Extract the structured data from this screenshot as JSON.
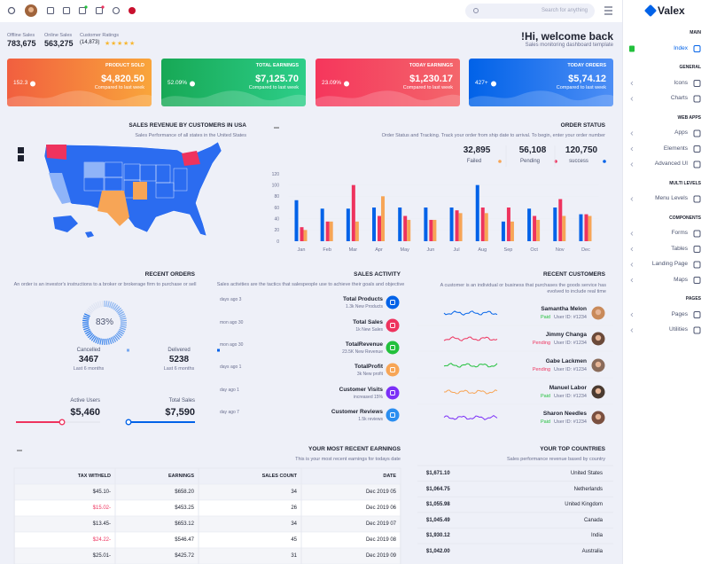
{
  "header": {
    "search_placeholder": "Search for anything"
  },
  "sidebar": {
    "brand": "Valex",
    "sections": [
      {
        "title": "MAIN",
        "items": [
          "Index"
        ]
      },
      {
        "title": "GENERAL",
        "items": [
          "Icons",
          "Charts"
        ]
      },
      {
        "title": "WEB APPS",
        "items": [
          "Apps",
          "Elements",
          "Advanced UI"
        ]
      },
      {
        "title": "MULTI LEVELS",
        "items": [
          "Menu Levels"
        ]
      },
      {
        "title": "COMPONENTS",
        "items": [
          "Forms",
          "Tables",
          "Landing Page",
          "Maps"
        ]
      },
      {
        "title": "PAGES",
        "items": [
          "Pages",
          "Utilities"
        ]
      }
    ]
  },
  "summary": {
    "stats": [
      {
        "label": "Offline Sales",
        "value": "783,675"
      },
      {
        "label": "Online Sales",
        "value": "563,275"
      },
      {
        "label": "Customer Ratings",
        "value": "(14,873)"
      }
    ],
    "welcome": "!Hi, welcome back",
    "subtitle": "Sales monitoring dashboard template"
  },
  "cards": [
    {
      "title": "PRODUCT SOLD",
      "value": "$4,820.50",
      "note": "Compared to last week",
      "change": "152.3"
    },
    {
      "title": "TOTAL EARNINGS",
      "value": "$7,125.70",
      "note": "Compared to last week",
      "change": "52.09%"
    },
    {
      "title": "TODAY EARNINGS",
      "value": "$1,230.17",
      "note": "Compared to last week",
      "change": "23.09%"
    },
    {
      "title": "TODAY ORDERS",
      "value": "$5,74.12",
      "note": "Compared to last week",
      "change": "427+"
    }
  ],
  "map_panel": {
    "title": "SALES REVENUE BY CUSTOMERS IN USA",
    "subtitle": "Sales Performance of all states in the United States"
  },
  "order_status": {
    "title": "ORDER STATUS",
    "subtitle": "Order Status and Tracking. Track your order from ship date to arrival. To begin, enter your order number",
    "totals": [
      {
        "value": "32,895",
        "label": "Failed"
      },
      {
        "value": "56,108",
        "label": "Pending"
      },
      {
        "value": "120,750",
        "label": "success"
      }
    ],
    "chart": {
      "type": "bar",
      "categories": [
        "Jan",
        "Feb",
        "Mar",
        "Apr",
        "May",
        "Jun",
        "Jul",
        "Aug",
        "Sep",
        "Oct",
        "Nov",
        "Dec"
      ],
      "series": [
        {
          "color": "#0162e8",
          "values": [
            73,
            58,
            58,
            60,
            60,
            60,
            60,
            100,
            35,
            58,
            60,
            48
          ]
        },
        {
          "color": "#ee335e",
          "values": [
            25,
            35,
            100,
            45,
            45,
            38,
            55,
            60,
            60,
            45,
            75,
            48
          ]
        },
        {
          "color": "#f7a556",
          "values": [
            20,
            35,
            35,
            80,
            38,
            38,
            50,
            50,
            35,
            38,
            45,
            45
          ]
        }
      ],
      "ylim": [
        0,
        120
      ],
      "yticks": [
        0,
        20,
        40,
        60,
        80,
        100,
        120
      ],
      "grid": true
    }
  },
  "recent_orders": {
    "title": "RECENT ORDERS",
    "subtitle": "An order is an investor's instructions to a broker or brokerage firm to purchase or sell",
    "gauge": {
      "value": 83,
      "label": "83%"
    },
    "stats": [
      {
        "label": "Cancelled",
        "value": "3467",
        "period": "Last 6 months"
      },
      {
        "label": "Delivered",
        "value": "5238",
        "period": "Last 6 months"
      }
    ]
  },
  "users": [
    {
      "label": "Active Users",
      "value": "$5,460"
    },
    {
      "label": "Total Sales",
      "value": "$7,590"
    }
  ],
  "sales_activity": {
    "title": "SALES ACTIVITY",
    "subtitle": "Sales activities are the tactics that salespeople use to achieve their goals and objective",
    "items": [
      {
        "time": "days ago 3",
        "title": "Total Products",
        "detail": "1.3k New Products"
      },
      {
        "time": "mon ago 30",
        "title": "Total Sales",
        "detail": "1k New Sales"
      },
      {
        "time": "mon ago 30",
        "title": "TotalRevenue",
        "detail": "23.5K New Revenue"
      },
      {
        "time": "days ago 1",
        "title": "TotalProfit",
        "detail": "3k New profit"
      },
      {
        "time": "day ago 1",
        "title": "Customer Visits",
        "detail": "increased 15%"
      },
      {
        "time": "day ago 7",
        "title": "Customer Reviews",
        "detail": "1.5k reviews"
      }
    ]
  },
  "recent_customers": {
    "title": "RECENT CUSTOMERS",
    "subtitle": "A customer is an individual or business that purchases the goods service has evolved to include real time",
    "items": [
      {
        "name": "Samantha Melon",
        "status": "Paid",
        "user_id": "User ID: #1234"
      },
      {
        "name": "Jimmy Changa",
        "status": "Pending",
        "user_id": "User ID: #1234"
      },
      {
        "name": "Gabe Lackmen",
        "status": "Pending",
        "user_id": "User ID: #1234"
      },
      {
        "name": "Manuel Labor",
        "status": "Paid",
        "user_id": "User ID: #1234"
      },
      {
        "name": "Sharon Needles",
        "status": "Paid",
        "user_id": "User ID: #1234"
      }
    ]
  },
  "earnings": {
    "title": "YOUR MOST RECENT EARNINGS",
    "subtitle": "This is your most recent earnings for todays date",
    "columns": [
      "TAX WITHELD",
      "EARNINGS",
      "SALES COUNT",
      "DATE"
    ],
    "rows": [
      [
        "$45.10-",
        "$658.20",
        "34",
        "Dec 2019 05"
      ],
      [
        "$15.02-",
        "$453.25",
        "26",
        "Dec 2019 06"
      ],
      [
        "$13.45-",
        "$653.12",
        "34",
        "Dec 2019 07"
      ],
      [
        "$24.22-",
        "$546.47",
        "45",
        "Dec 2019 08"
      ],
      [
        "$25.01-",
        "$425.72",
        "31",
        "Dec 2019 09"
      ]
    ]
  },
  "countries": {
    "title": "YOUR TOP COUNTRIES",
    "subtitle": "Sales performance revenue based by country",
    "rows": [
      {
        "amount": "$1,671.10",
        "country": "United States"
      },
      {
        "amount": "$1,064.75",
        "country": "Netherlands"
      },
      {
        "amount": "$1,055.98",
        "country": "United Kingdom"
      },
      {
        "amount": "$1,045.49",
        "country": "Canada"
      },
      {
        "amount": "$1,930.12",
        "country": "India"
      },
      {
        "amount": "$1,042.00",
        "country": "Australia"
      }
    ]
  }
}
